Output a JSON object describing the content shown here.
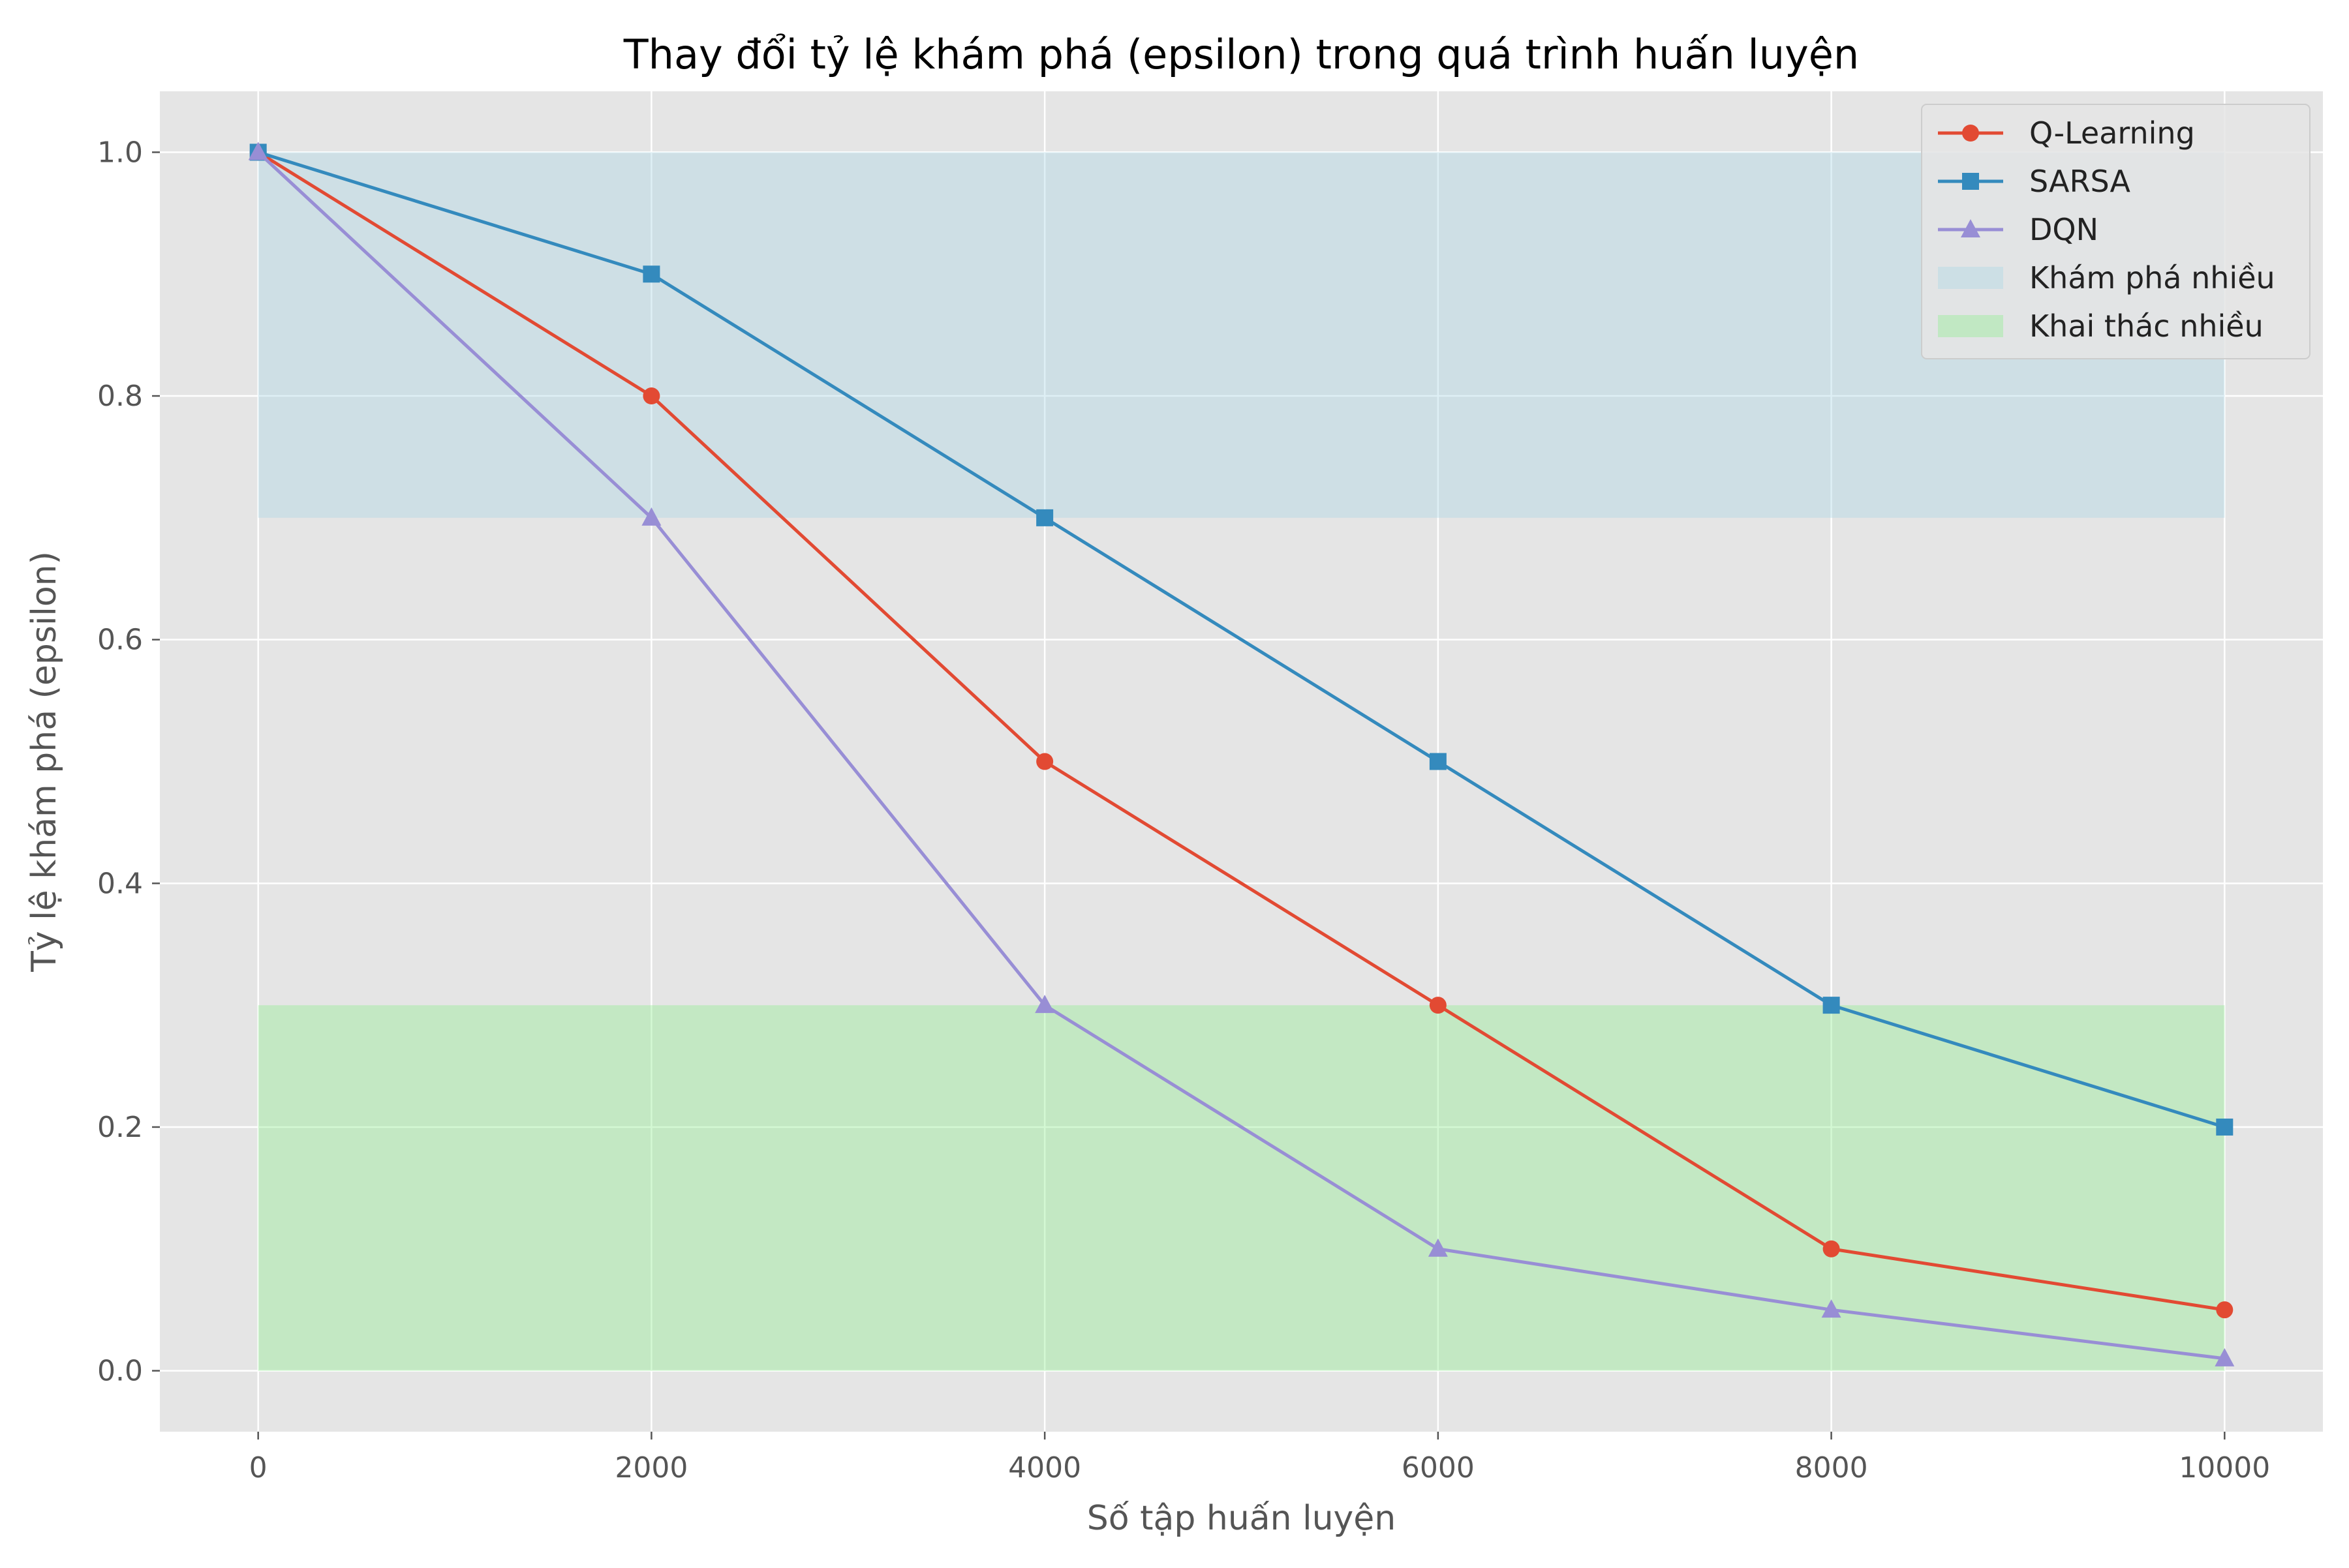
{
  "chart_data": {
    "type": "line",
    "title": "Thay đổi tỷ lệ khám phá (epsilon) trong quá trình huấn luyện",
    "xlabel": "Số tập huấn luyện",
    "ylabel": "Tỷ lệ khám phá (epsilon)",
    "x": [
      0,
      2000,
      4000,
      6000,
      8000,
      10000
    ],
    "xlim": [
      -500,
      10500
    ],
    "ylim": [
      -0.05,
      1.05
    ],
    "xticks": [
      0,
      2000,
      4000,
      6000,
      8000,
      10000
    ],
    "yticks": [
      0.0,
      0.2,
      0.4,
      0.6,
      0.8,
      1.0
    ],
    "xtick_labels": [
      "0",
      "2000",
      "4000",
      "6000",
      "8000",
      "10000"
    ],
    "ytick_labels": [
      "0.0",
      "0.2",
      "0.4",
      "0.6",
      "0.8",
      "1.0"
    ],
    "grid": true,
    "legend_position": "top-right",
    "series": [
      {
        "name": "Q-Learning",
        "values": [
          1.0,
          0.8,
          0.5,
          0.3,
          0.1,
          0.05
        ],
        "color": "#E24A33",
        "marker": "circle"
      },
      {
        "name": "SARSA",
        "values": [
          1.0,
          0.9,
          0.7,
          0.5,
          0.3,
          0.2
        ],
        "color": "#348ABD",
        "marker": "square"
      },
      {
        "name": "DQN",
        "values": [
          1.0,
          0.7,
          0.3,
          0.1,
          0.05,
          0.01
        ],
        "color": "#988ED5",
        "marker": "triangle"
      }
    ],
    "bands": [
      {
        "name": "Khám phá nhiều",
        "x_range": [
          0,
          10000
        ],
        "y_range": [
          0.7,
          1.0
        ],
        "color": "#ADD8E6"
      },
      {
        "name": "Khai thác nhiều",
        "x_range": [
          0,
          10000
        ],
        "y_range": [
          0.0,
          0.3
        ],
        "color": "#90EE90"
      }
    ],
    "colors": {
      "plot_background": "#E5E5E5",
      "grid": "#FFFFFF",
      "text": "#555555",
      "title": "#000000"
    }
  }
}
